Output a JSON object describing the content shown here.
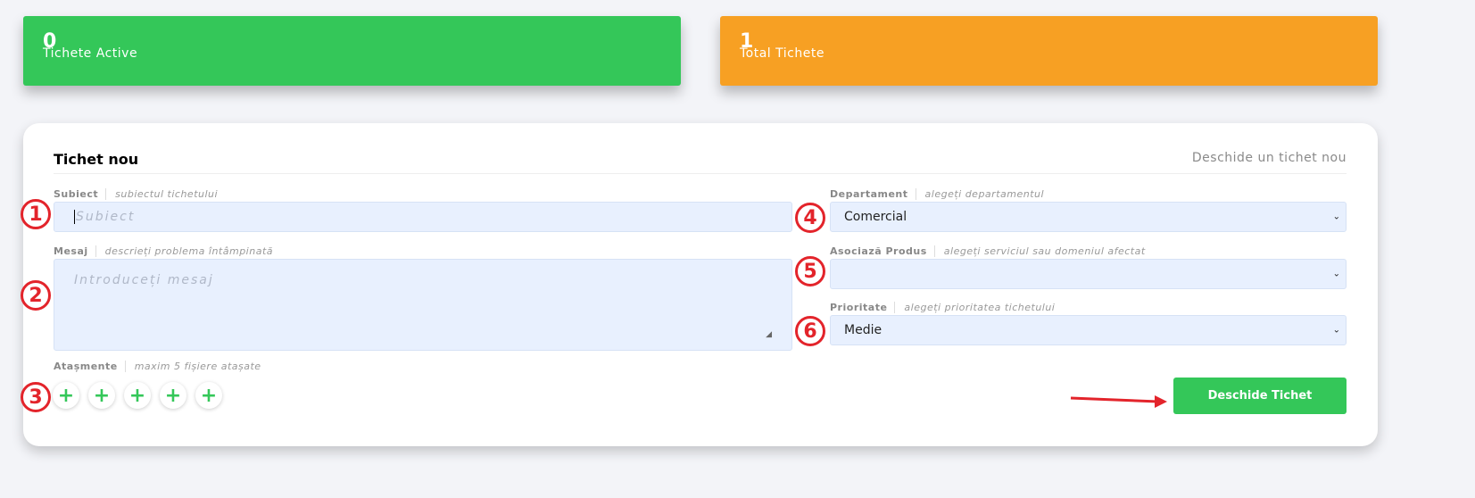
{
  "stats": [
    {
      "value": "0",
      "label": "Tichete Active",
      "color": "#34c759"
    },
    {
      "value": "1",
      "label": "Total Tichete",
      "color": "#f7a023"
    }
  ],
  "form": {
    "title": "Tichet nou",
    "subtitle": "Deschide un tichet nou",
    "subject": {
      "label": "Subiect",
      "hint": "subiectul tichetului",
      "placeholder": "Subiect",
      "value": ""
    },
    "message": {
      "label": "Mesaj",
      "hint": "descrieți problema întâmpinată",
      "placeholder": "Introduceți mesaj",
      "value": ""
    },
    "attachments": {
      "label": "Atașmente",
      "hint": "maxim 5 fișiere atașate",
      "slots": 5
    },
    "department": {
      "label": "Departament",
      "hint": "alegeți departamentul",
      "value": "Comercial"
    },
    "product": {
      "label": "Asociază Produs",
      "hint": "alegeți serviciul sau domeniul afectat",
      "value": ""
    },
    "priority": {
      "label": "Prioritate",
      "hint": "alegeți prioritatea tichetului",
      "value": "Medie"
    },
    "submit_label": "Deschide Tichet"
  },
  "annotations": [
    "1",
    "2",
    "3",
    "4",
    "5",
    "6"
  ],
  "accent": "#e3242b"
}
